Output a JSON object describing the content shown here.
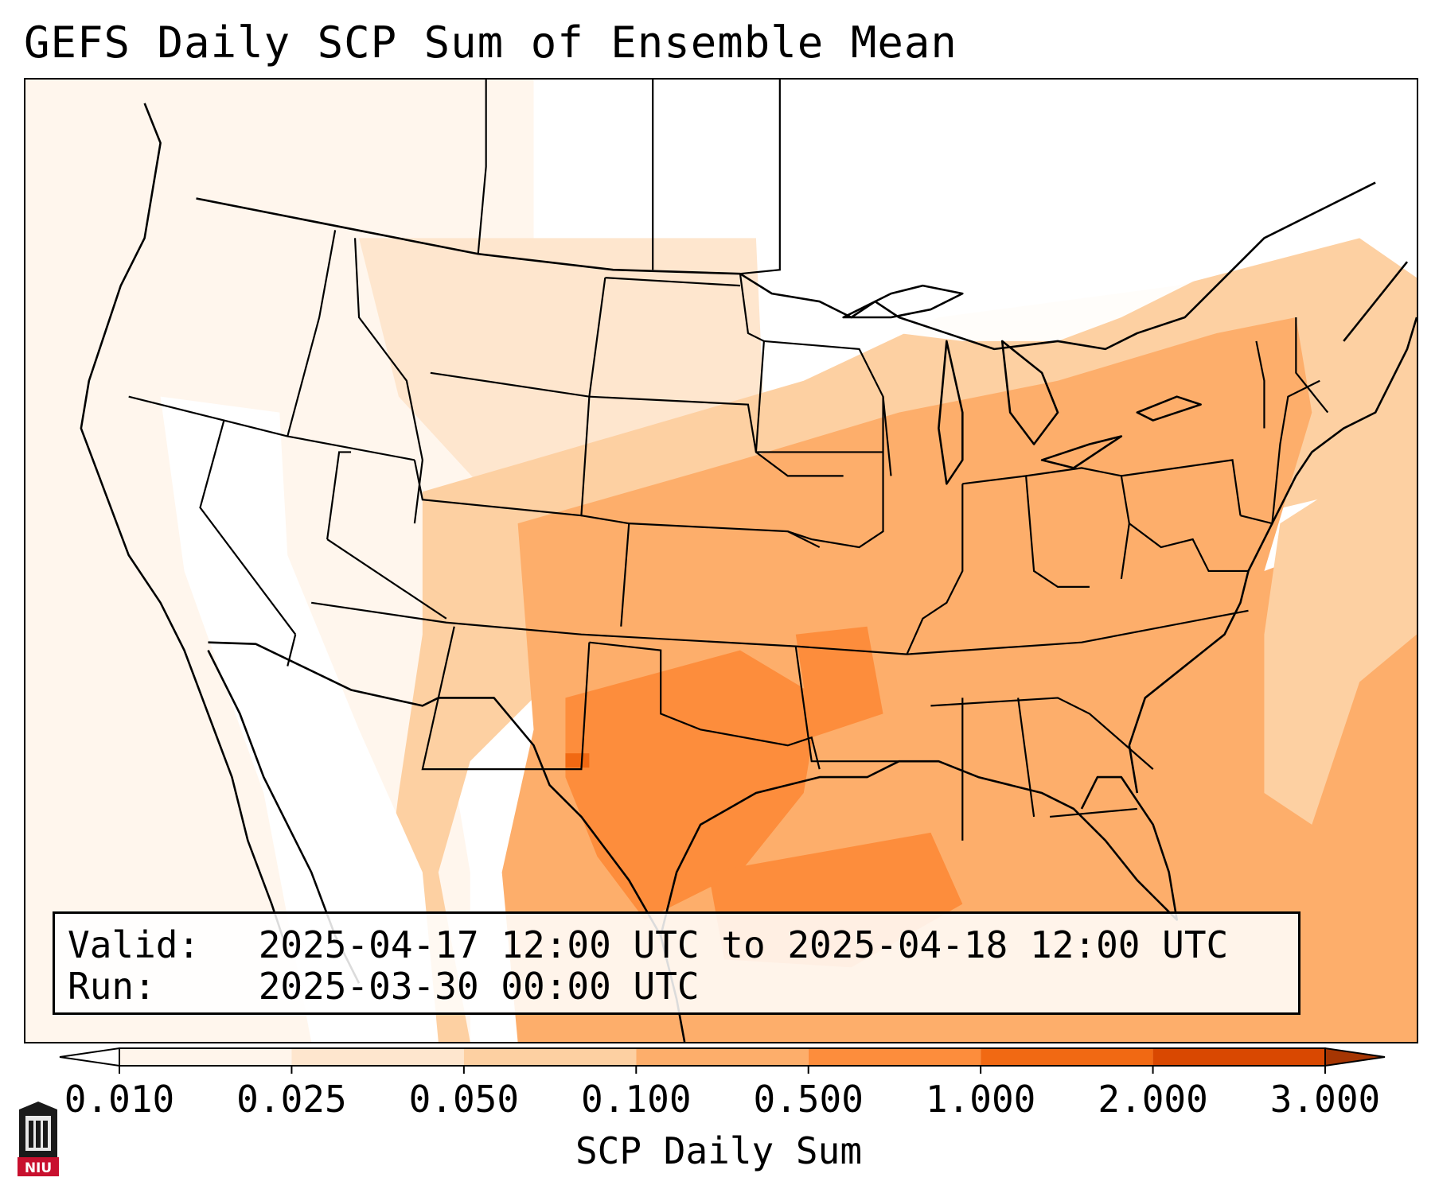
{
  "title": "GEFS Daily SCP Sum of Ensemble Mean",
  "info": {
    "valid_label": "Valid:",
    "valid_value": "2025-04-17 12:00 UTC to 2025-04-18 12:00 UTC",
    "run_label": "Run:",
    "run_value": "2025-03-30 00:00 UTC"
  },
  "colorbar": {
    "label": "SCP Daily Sum",
    "ticks": [
      "0.010",
      "0.025",
      "0.050",
      "0.100",
      "0.500",
      "1.000",
      "2.000",
      "3.000"
    ],
    "colors": [
      "#fff5eb",
      "#fee6ce",
      "#fdd0a2",
      "#fdae6b",
      "#fd8d3c",
      "#f16913",
      "#d94801"
    ],
    "under_color": "#ffffff",
    "over_color": "#a63603",
    "extend": "both"
  },
  "logo": {
    "text": "NIU"
  },
  "colors": {
    "land_outline": "#000000",
    "light_tint": "#fff5eb",
    "pale_tint": "#fee6ce",
    "mid_tint": "#fdd0a2",
    "strong_tint": "#fdae6b",
    "hot_tint": "#fd8d3c",
    "peak_tint": "#f16913"
  }
}
